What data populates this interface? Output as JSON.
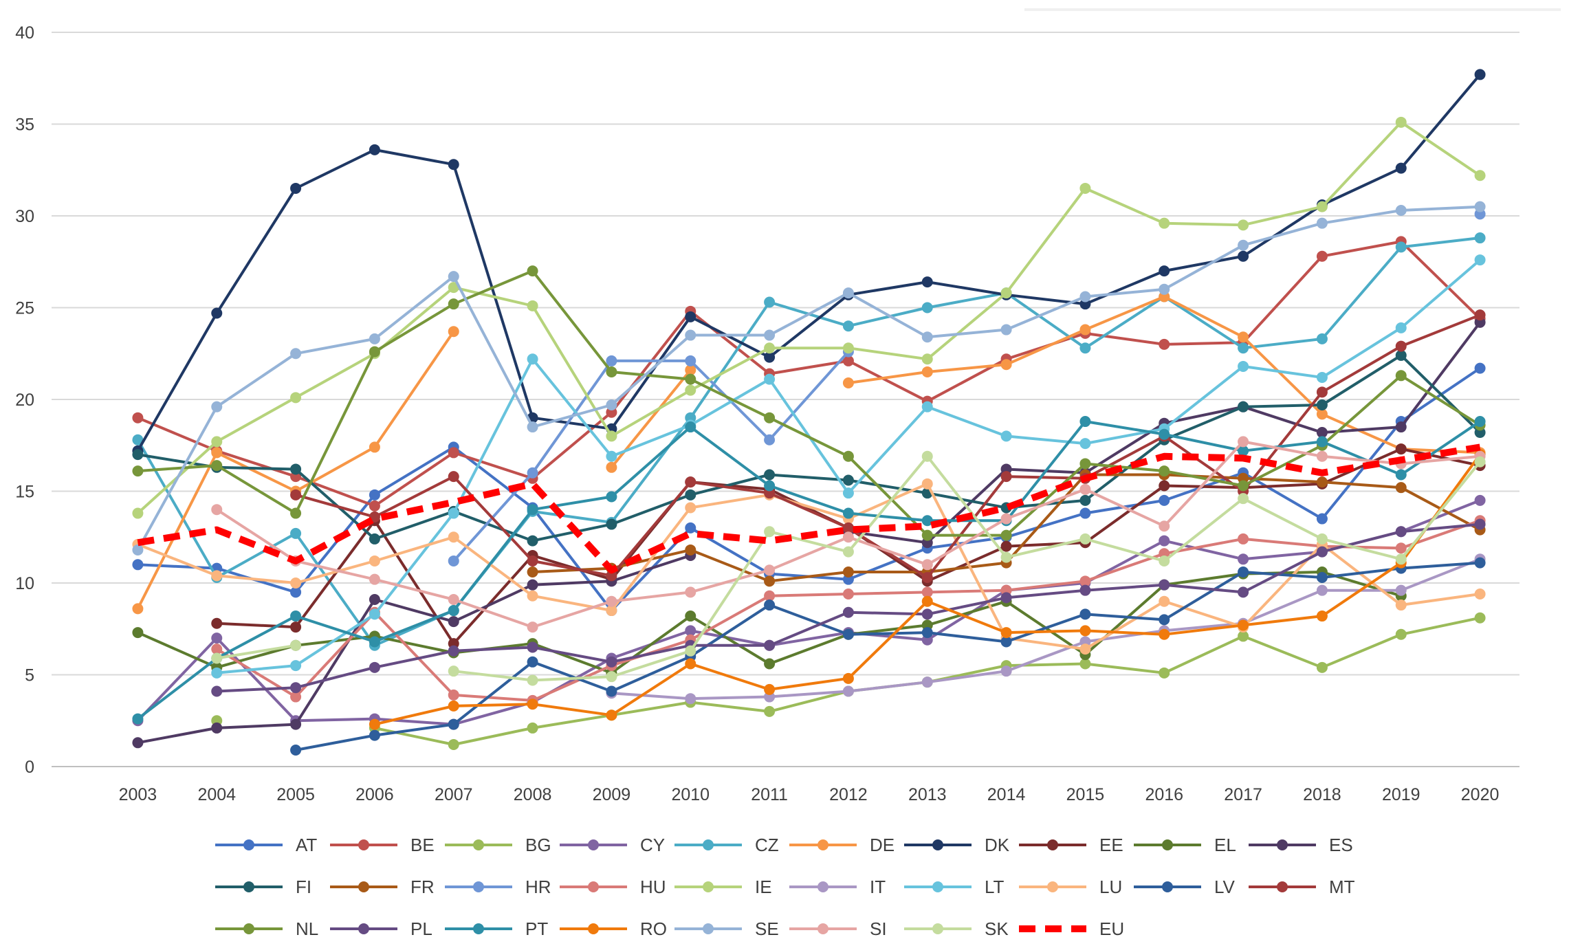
{
  "chart_data": {
    "type": "line",
    "title": "",
    "xlabel": "",
    "ylabel": "",
    "ylim": [
      0,
      40
    ],
    "y_ticks": [
      "0",
      "5",
      "10",
      "15",
      "20",
      "25",
      "30",
      "35",
      "40"
    ],
    "grid": true,
    "legend_position": "bottom",
    "categories": [
      "2003",
      "2004",
      "2005",
      "2006",
      "2007",
      "2008",
      "2009",
      "2010",
      "2011",
      "2012",
      "2013",
      "2014",
      "2015",
      "2016",
      "2017",
      "2018",
      "2019",
      "2020"
    ],
    "series": [
      {
        "name": "AT",
        "color": "#4472C4",
        "values": [
          11.0,
          10.8,
          9.5,
          14.8,
          17.4,
          14.1,
          8.5,
          13.0,
          10.5,
          10.2,
          11.9,
          12.5,
          13.8,
          14.5,
          16.0,
          13.5,
          18.8,
          21.7
        ]
      },
      {
        "name": "BE",
        "color": "#C0504D",
        "values": [
          19.0,
          17.2,
          15.8,
          14.2,
          17.1,
          15.7,
          19.3,
          24.8,
          21.4,
          22.1,
          19.9,
          22.2,
          23.6,
          23.0,
          23.1,
          27.8,
          28.6,
          24.4
        ]
      },
      {
        "name": "BG",
        "color": "#9BBB59",
        "values": [
          null,
          2.5,
          null,
          2.1,
          1.2,
          2.1,
          2.8,
          3.5,
          3.0,
          4.1,
          4.6,
          5.5,
          5.6,
          5.1,
          7.1,
          5.4,
          7.2,
          8.1
        ]
      },
      {
        "name": "CY",
        "color": "#8064A2",
        "values": [
          2.5,
          7.0,
          2.5,
          2.6,
          2.3,
          3.5,
          5.9,
          7.4,
          6.6,
          7.3,
          6.9,
          9.6,
          10.0,
          12.3,
          11.3,
          11.7,
          12.8,
          14.5
        ]
      },
      {
        "name": "CZ",
        "color": "#4BACC6",
        "values": [
          17.8,
          10.3,
          12.7,
          6.6,
          8.5,
          13.9,
          13.3,
          19.0,
          25.3,
          24.0,
          25.0,
          25.8,
          22.8,
          25.6,
          22.8,
          23.3,
          28.3,
          28.8
        ]
      },
      {
        "name": "DE",
        "color": "#F79646",
        "values": [
          8.6,
          17.1,
          15.0,
          17.4,
          23.7,
          null,
          16.3,
          21.6,
          null,
          20.9,
          21.5,
          21.9,
          23.8,
          25.6,
          23.4,
          19.2,
          17.3,
          17.1
        ]
      },
      {
        "name": "DK",
        "color": "#1F3864",
        "values": [
          17.2,
          24.7,
          31.5,
          33.6,
          32.8,
          19.0,
          18.4,
          24.5,
          22.3,
          25.7,
          26.4,
          25.7,
          25.2,
          27.0,
          27.8,
          30.6,
          32.6,
          37.7
        ]
      },
      {
        "name": "EE",
        "color": "#7B2C2C",
        "values": [
          null,
          7.8,
          7.6,
          13.4,
          6.7,
          11.5,
          10.2,
          15.5,
          15.1,
          13.0,
          10.1,
          12.0,
          12.2,
          15.3,
          15.2,
          15.4,
          17.3,
          16.4
        ]
      },
      {
        "name": "EL",
        "color": "#5C7B2E",
        "values": [
          7.3,
          5.4,
          6.6,
          7.1,
          6.2,
          6.7,
          5.1,
          8.2,
          5.6,
          7.2,
          7.7,
          9.0,
          6.1,
          9.9,
          10.5,
          10.6,
          9.3,
          null
        ]
      },
      {
        "name": "ES",
        "color": "#4F3A63",
        "values": [
          1.3,
          2.1,
          2.3,
          9.1,
          7.9,
          9.9,
          10.1,
          11.5,
          null,
          12.8,
          12.2,
          16.2,
          16.0,
          18.7,
          19.6,
          18.2,
          18.5,
          24.2
        ]
      },
      {
        "name": "FI",
        "color": "#215E69",
        "values": [
          17.0,
          16.3,
          16.2,
          12.4,
          13.9,
          12.3,
          13.2,
          14.8,
          15.9,
          15.6,
          14.9,
          14.1,
          14.5,
          17.8,
          19.6,
          19.7,
          22.4,
          18.2
        ]
      },
      {
        "name": "FR",
        "color": "#A85A17",
        "values": [
          null,
          null,
          null,
          null,
          null,
          10.6,
          10.8,
          11.8,
          10.1,
          10.6,
          10.6,
          11.1,
          15.9,
          15.9,
          15.7,
          15.5,
          15.2,
          12.9
        ]
      },
      {
        "name": "HR",
        "color": "#6F96D6",
        "values": [
          null,
          null,
          null,
          null,
          11.2,
          16.0,
          22.1,
          22.1,
          17.8,
          22.6,
          null,
          null,
          null,
          null,
          null,
          null,
          null,
          30.1
        ]
      },
      {
        "name": "HU",
        "color": "#D97A77",
        "values": [
          null,
          6.4,
          3.8,
          8.4,
          3.9,
          3.6,
          5.5,
          6.9,
          9.3,
          9.4,
          9.5,
          9.6,
          10.1,
          11.6,
          12.4,
          12.0,
          11.9,
          13.4
        ]
      },
      {
        "name": "IE",
        "color": "#B6D37B",
        "values": [
          13.8,
          17.7,
          20.1,
          22.5,
          26.1,
          25.1,
          18.0,
          20.5,
          22.8,
          22.8,
          22.2,
          25.8,
          31.5,
          29.6,
          29.5,
          30.5,
          35.1,
          32.2
        ]
      },
      {
        "name": "IT",
        "color": "#A997C4",
        "values": [
          null,
          null,
          null,
          null,
          null,
          null,
          4.0,
          3.7,
          3.8,
          4.1,
          4.6,
          5.2,
          6.8,
          7.4,
          7.8,
          9.6,
          9.6,
          11.3
        ]
      },
      {
        "name": "LT",
        "color": "#67C3DD",
        "values": [
          null,
          5.1,
          5.5,
          8.3,
          13.8,
          22.2,
          16.9,
          18.6,
          21.1,
          14.9,
          19.6,
          18.0,
          17.6,
          18.4,
          21.8,
          21.2,
          23.9,
          27.6
        ]
      },
      {
        "name": "LU",
        "color": "#FAB57E",
        "values": [
          12.1,
          10.4,
          10.0,
          11.2,
          12.5,
          9.3,
          8.5,
          14.1,
          14.8,
          13.5,
          15.4,
          7.0,
          6.4,
          9.0,
          7.6,
          12.1,
          8.8,
          9.4
        ]
      },
      {
        "name": "LV",
        "color": "#2E5E9B",
        "values": [
          null,
          null,
          0.9,
          1.7,
          2.3,
          5.7,
          4.1,
          6.0,
          8.8,
          7.2,
          7.3,
          6.8,
          8.3,
          8.0,
          10.6,
          10.3,
          10.8,
          11.1
        ]
      },
      {
        "name": "MT",
        "color": "#A33A3A",
        "values": [
          null,
          null,
          14.8,
          13.6,
          15.8,
          11.2,
          10.4,
          15.5,
          14.9,
          13.0,
          10.3,
          15.8,
          15.7,
          18.0,
          15.0,
          20.4,
          22.9,
          24.6
        ]
      },
      {
        "name": "NL",
        "color": "#77963A",
        "values": [
          16.1,
          16.4,
          13.8,
          22.6,
          25.2,
          27.0,
          21.5,
          21.1,
          19.0,
          16.9,
          12.6,
          12.6,
          16.5,
          16.1,
          15.3,
          17.5,
          21.3,
          18.6
        ]
      },
      {
        "name": "PL",
        "color": "#654B83",
        "values": [
          null,
          4.1,
          4.3,
          5.4,
          6.3,
          6.5,
          5.7,
          6.6,
          6.6,
          8.4,
          8.3,
          9.2,
          9.6,
          9.9,
          9.5,
          11.7,
          12.8,
          13.2
        ]
      },
      {
        "name": "PT",
        "color": "#2E8FA7",
        "values": [
          2.6,
          5.9,
          8.2,
          6.8,
          8.5,
          14.0,
          14.7,
          18.5,
          15.3,
          13.8,
          13.4,
          13.4,
          18.8,
          18.1,
          17.2,
          17.7,
          15.9,
          18.8
        ]
      },
      {
        "name": "RO",
        "color": "#F07A0C",
        "values": [
          null,
          null,
          null,
          2.3,
          3.3,
          3.4,
          2.8,
          5.6,
          4.2,
          4.8,
          9.0,
          7.3,
          7.4,
          7.2,
          7.7,
          8.2,
          11.1,
          17.0
        ]
      },
      {
        "name": "SE",
        "color": "#95B3D7",
        "values": [
          11.8,
          19.6,
          22.5,
          23.3,
          26.7,
          18.5,
          19.7,
          23.5,
          23.5,
          25.8,
          23.4,
          23.8,
          25.6,
          26.0,
          28.4,
          29.6,
          30.3,
          30.5
        ]
      },
      {
        "name": "SI",
        "color": "#E6A5A3",
        "values": [
          null,
          14.0,
          11.2,
          10.2,
          9.1,
          7.6,
          9.0,
          9.5,
          10.7,
          12.5,
          11.0,
          13.5,
          15.1,
          13.1,
          17.7,
          16.9,
          16.5,
          16.9
        ]
      },
      {
        "name": "SK",
        "color": "#C4DC9E",
        "values": [
          null,
          5.9,
          6.6,
          null,
          5.2,
          4.7,
          4.9,
          6.3,
          12.8,
          11.7,
          16.9,
          11.4,
          12.4,
          11.2,
          14.6,
          12.4,
          11.3,
          16.6
        ]
      }
    ],
    "reference_series": {
      "name": "EU",
      "color": "#FF0000",
      "dashed": true,
      "values": [
        12.2,
        12.9,
        11.2,
        13.5,
        14.4,
        15.4,
        10.7,
        12.7,
        12.3,
        12.9,
        13.1,
        14.1,
        15.7,
        16.9,
        16.8,
        16.0,
        16.7,
        17.4
      ]
    },
    "legend_rows": [
      [
        "AT",
        "BE",
        "BG",
        "CY",
        "CZ",
        "DE",
        "DK",
        "EE",
        "EL",
        "ES"
      ],
      [
        "FI",
        "FR",
        "HR",
        "HU",
        "IE",
        "IT",
        "LT",
        "LU",
        "LV",
        "MT"
      ],
      [
        "NL",
        "PL",
        "PT",
        "RO",
        "SE",
        "SI",
        "SK",
        "EU"
      ]
    ]
  }
}
